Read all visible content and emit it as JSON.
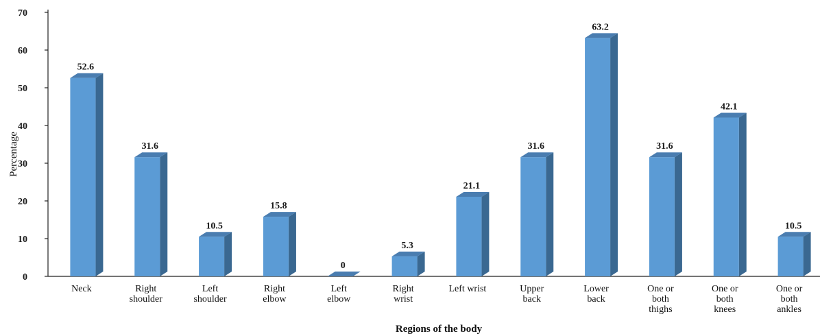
{
  "chart_data": {
    "type": "bar",
    "title": "",
    "xlabel": "Regions of the body",
    "ylabel": "Percentage",
    "ylim": [
      0,
      70
    ],
    "yticks": [
      0,
      10,
      20,
      30,
      40,
      50,
      60,
      70
    ],
    "grid": false,
    "legend": "none",
    "bar_style": "3d",
    "colors": {
      "bar_front": "#5b9bd5",
      "bar_side": "#3a6891",
      "bar_top": "#4a7db0"
    },
    "categories": [
      [
        "Neck"
      ],
      [
        "Right",
        "shoulder"
      ],
      [
        "Left",
        "shoulder"
      ],
      [
        "Right",
        "elbow"
      ],
      [
        "Left",
        "elbow"
      ],
      [
        "Right",
        "wrist"
      ],
      [
        "Left wrist"
      ],
      [
        "Upper",
        "back"
      ],
      [
        "Lower",
        "back"
      ],
      [
        "One or",
        "both",
        "thighs"
      ],
      [
        "One or",
        "both",
        "knees"
      ],
      [
        "One or",
        "both",
        "ankles"
      ]
    ],
    "values": [
      52.6,
      31.6,
      10.5,
      15.8,
      0,
      5.3,
      21.1,
      31.6,
      63.2,
      31.6,
      42.1,
      10.5
    ],
    "data_labels": [
      "52.6",
      "31.6",
      "10.5",
      "15.8",
      "0",
      "5.3",
      "21.1",
      "31.6",
      "63.2",
      "31.6",
      "42.1",
      "10.5"
    ]
  }
}
